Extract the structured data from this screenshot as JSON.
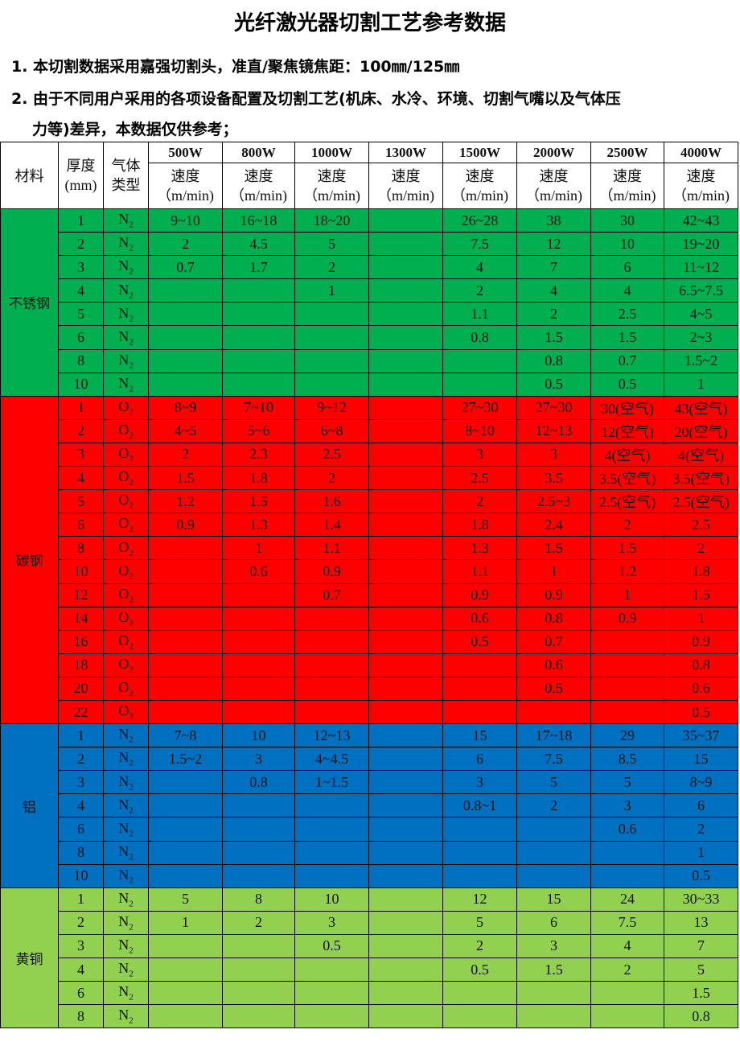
{
  "title": "光纤激光器切割工艺参考数据",
  "notes": [
    "1. 本切割数据采用嘉强切割头，准直/聚焦镜焦距：100㎜/125㎜",
    "2. 由于不同用户采用的各项设备配置及切割工艺(机床、水冷、环境、切割气嘴以及气体压",
    "力等)差异，本数据仅供参考；"
  ],
  "header": {
    "material": "材料",
    "thickness": "厚度",
    "thickness_unit": "(mm)",
    "gas": "气体",
    "gas2": "类型",
    "speed": "速度",
    "speed_unit": "（m/min)",
    "powers": [
      "500W",
      "800W",
      "1000W",
      "1300W",
      "1500W",
      "2000W",
      "2500W",
      "4000W"
    ]
  },
  "groups": [
    {
      "material": "不锈钢",
      "color": "#00b050",
      "gas": "N",
      "rows": [
        [
          "1",
          "9~10",
          "16~18",
          "18~20",
          "",
          "26~28",
          "38",
          "30",
          "42~43"
        ],
        [
          "2",
          "2",
          "4.5",
          "5",
          "",
          "7.5",
          "12",
          "10",
          "19~20"
        ],
        [
          "3",
          "0.7",
          "1.7",
          "2",
          "",
          "4",
          "7",
          "6",
          "11~12"
        ],
        [
          "4",
          "",
          "",
          "1",
          "",
          "2",
          "4",
          "4",
          "6.5~7.5"
        ],
        [
          "5",
          "",
          "",
          "",
          "",
          "1.1",
          "2",
          "2.5",
          "4~5"
        ],
        [
          "6",
          "",
          "",
          "",
          "",
          "0.8",
          "1.5",
          "1.5",
          "2~3"
        ],
        [
          "8",
          "",
          "",
          "",
          "",
          "",
          "0.8",
          "0.7",
          "1.5~2"
        ],
        [
          "10",
          "",
          "",
          "",
          "",
          "",
          "0.5",
          "0.5",
          "1"
        ]
      ]
    },
    {
      "material": "碳钢",
      "color": "#ff0000",
      "gas": "O",
      "rows": [
        [
          "1",
          "8~9",
          "7~10",
          "9~12",
          "",
          "27~30",
          "27~30",
          "30(空气)",
          "43(空气)"
        ],
        [
          "2",
          "4~5",
          "5~6",
          "6~8",
          "",
          "8~10",
          "12~13",
          "12(空气)",
          "20(空气)"
        ],
        [
          "3",
          "2",
          "2.3",
          "2.5",
          "",
          "3",
          "3",
          "4(空气)",
          "4(空气)"
        ],
        [
          "4",
          "1.5",
          "1.8",
          "2",
          "",
          "2.5",
          "3.5",
          "3.5(空气)",
          "3.5(空气)"
        ],
        [
          "5",
          "1.2",
          "1.5",
          "1.6",
          "",
          "2",
          "2.5~3",
          "2.5(空气)",
          "2.5(空气)"
        ],
        [
          "6",
          "0.9",
          "1.3",
          "1.4",
          "",
          "1.8",
          "2.4",
          "2",
          "2.5"
        ],
        [
          "8",
          "",
          "1",
          "1.1",
          "",
          "1.3",
          "1.5",
          "1.5",
          "2"
        ],
        [
          "10",
          "",
          "0.6",
          "0.9",
          "",
          "1.1",
          "1",
          "1.2",
          "1.8"
        ],
        [
          "12",
          "",
          "",
          "0.7",
          "",
          "0.9",
          "0.9",
          "1",
          "1.5"
        ],
        [
          "14",
          "",
          "",
          "",
          "",
          "0.6",
          "0.8",
          "0.9",
          "1"
        ],
        [
          "16",
          "",
          "",
          "",
          "",
          "0.5",
          "0.7",
          "",
          "0.9"
        ],
        [
          "18",
          "",
          "",
          "",
          "",
          "",
          "0.6",
          "",
          "0.8"
        ],
        [
          "20",
          "",
          "",
          "",
          "",
          "",
          "0.5",
          "",
          "0.6"
        ],
        [
          "22",
          "",
          "",
          "",
          "",
          "",
          "",
          "",
          "0.5"
        ]
      ]
    },
    {
      "material": "铝",
      "color": "#0070c0",
      "gas": "N",
      "rows": [
        [
          "1",
          "7~8",
          "10",
          "12~13",
          "",
          "15",
          "17~18",
          "29",
          "35~37"
        ],
        [
          "2",
          "1.5~2",
          "3",
          "4~4.5",
          "",
          "6",
          "7.5",
          "8.5",
          "15"
        ],
        [
          "3",
          "",
          "0.8",
          "1~1.5",
          "",
          "3",
          "5",
          "5",
          "8~9"
        ],
        [
          "4",
          "",
          "",
          "",
          "",
          "0.8~1",
          "2",
          "3",
          "6"
        ],
        [
          "6",
          "",
          "",
          "",
          "",
          "",
          "",
          "0.6",
          "2"
        ],
        [
          "8",
          "",
          "",
          "",
          "",
          "",
          "",
          "",
          "1"
        ],
        [
          "10",
          "",
          "",
          "",
          "",
          "",
          "",
          "",
          "0.5"
        ]
      ]
    },
    {
      "material": "黄铜",
      "color": "#92d050",
      "gas": "N",
      "rows": [
        [
          "1",
          "5",
          "8",
          "10",
          "",
          "12",
          "15",
          "24",
          "30~33"
        ],
        [
          "2",
          "1",
          "2",
          "3",
          "",
          "5",
          "6",
          "7.5",
          "13"
        ],
        [
          "3",
          "",
          "",
          "0.5",
          "",
          "2",
          "3",
          "4",
          "7"
        ],
        [
          "4",
          "",
          "",
          "",
          "",
          "0.5",
          "1.5",
          "2",
          "5"
        ],
        [
          "6",
          "",
          "",
          "",
          "",
          "",
          "",
          "",
          "1.5"
        ],
        [
          "8",
          "",
          "",
          "",
          "",
          "",
          "",
          "",
          "0.8"
        ]
      ]
    }
  ],
  "gas_sub": "2"
}
